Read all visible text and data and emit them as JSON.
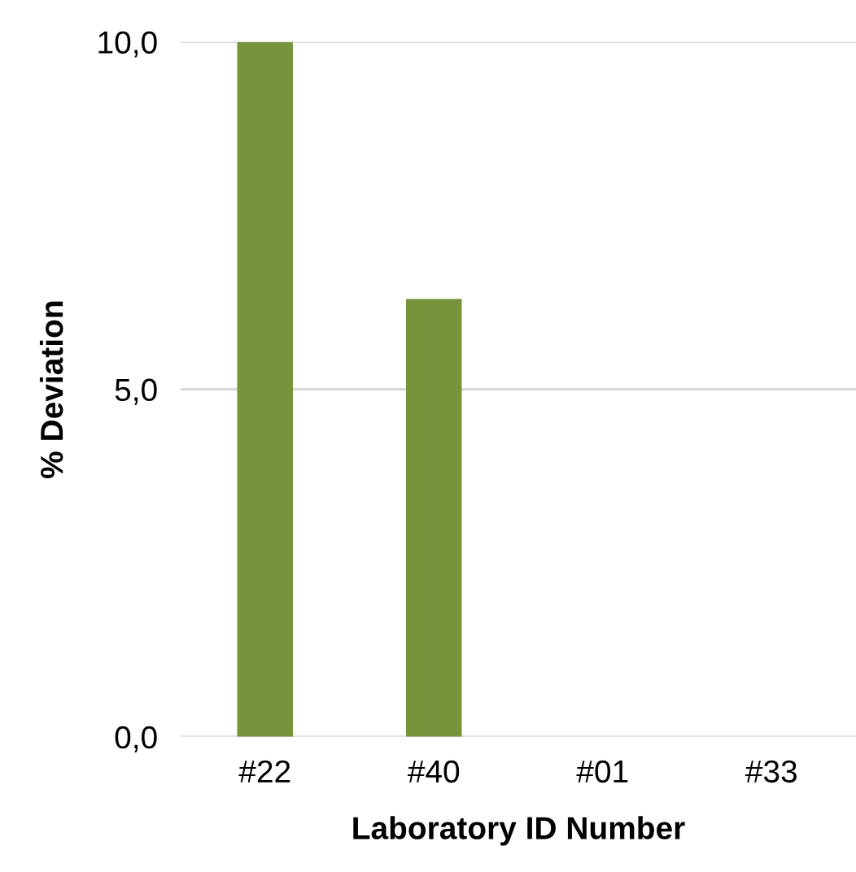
{
  "chart_data": {
    "type": "bar",
    "xlabel": "Laboratory ID Number",
    "ylabel": "% Deviation",
    "categories": [
      "#22",
      "#40",
      "#01",
      "#33"
    ],
    "values": [
      10.0,
      6.3,
      0,
      0
    ],
    "color": "#77933c",
    "ylim": [
      0,
      10
    ],
    "yticks": [
      {
        "value": 0,
        "label": "0,0"
      },
      {
        "value": 5,
        "label": "5,0"
      },
      {
        "value": 10,
        "label": "10,0"
      }
    ],
    "grid": "y"
  }
}
